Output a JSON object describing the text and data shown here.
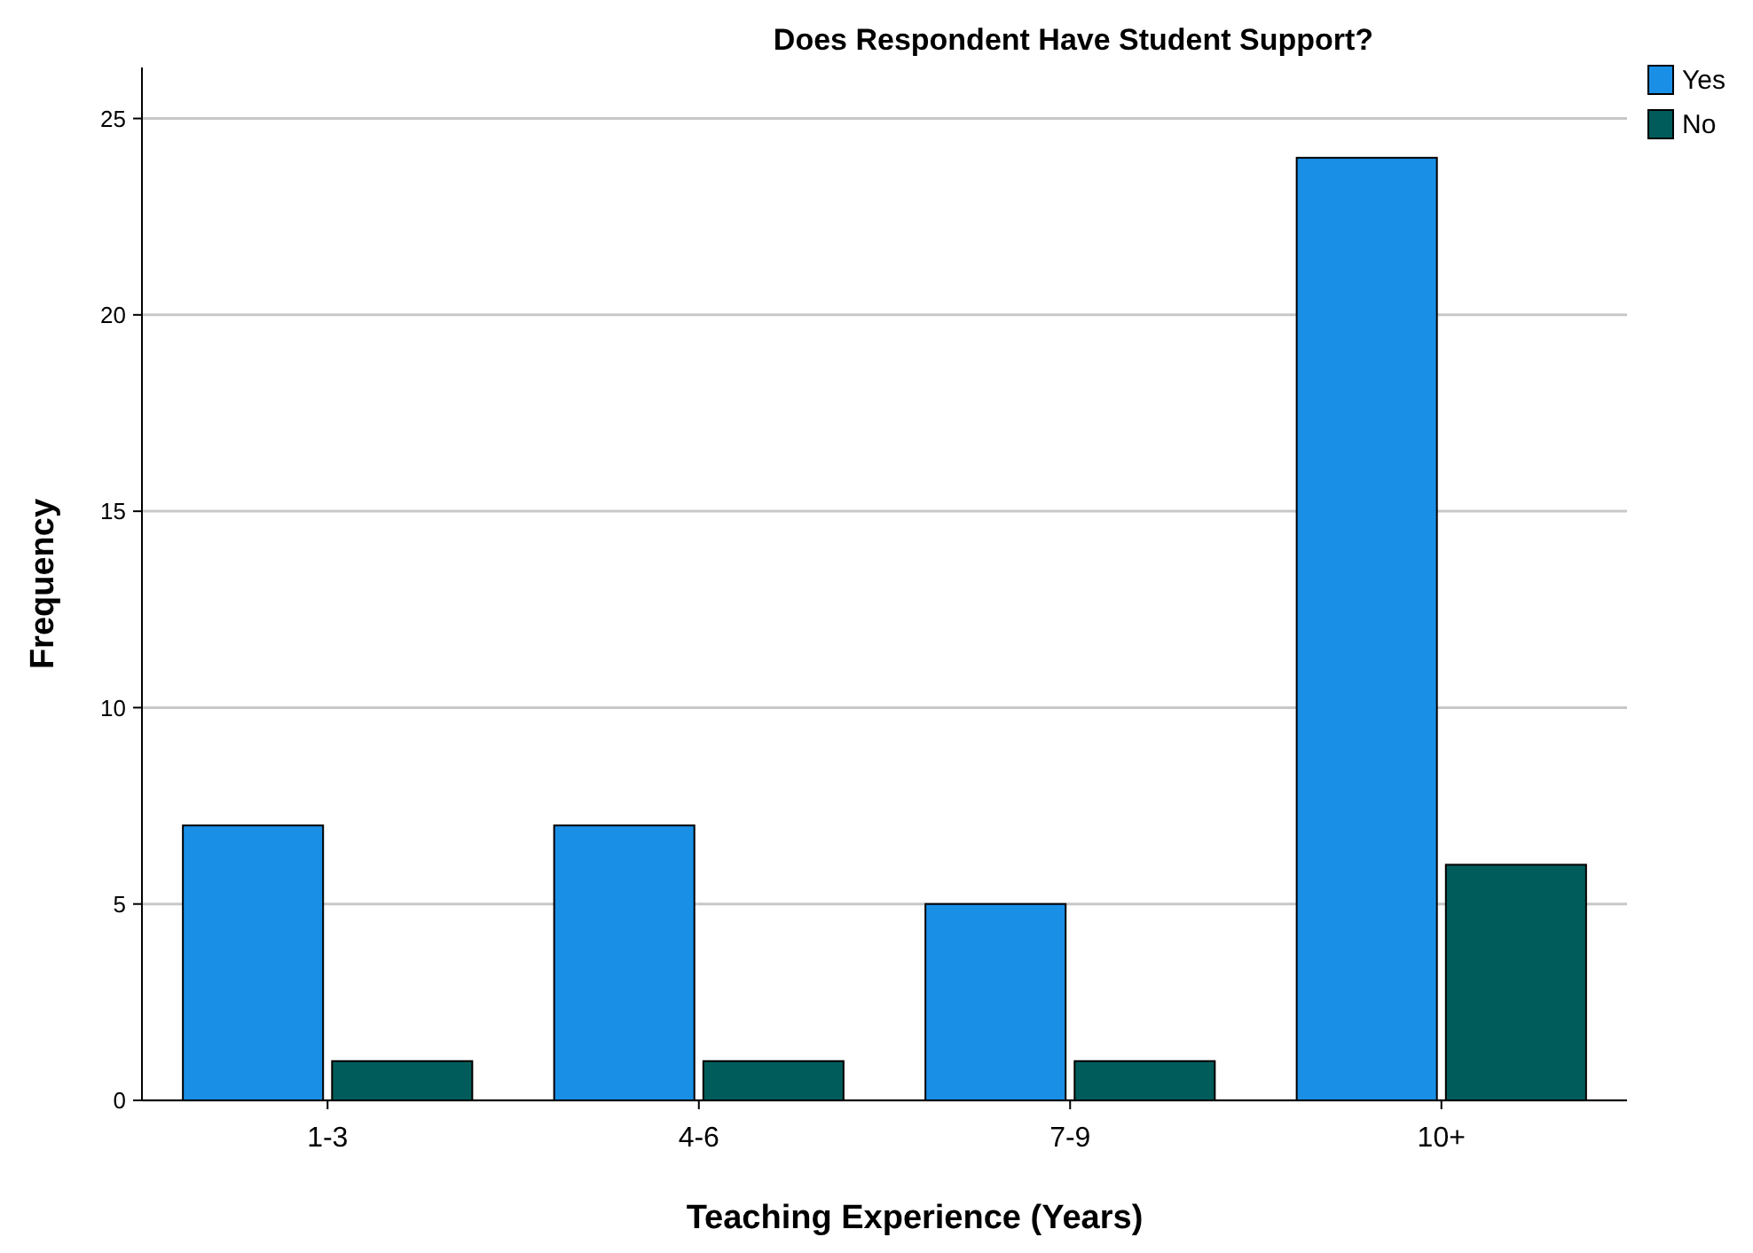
{
  "chart_data": {
    "type": "bar",
    "title": "Does Respondent Have Student Support?",
    "xlabel": "Teaching Experience (Years)",
    "ylabel": "Frequency",
    "categories": [
      "1-3",
      "4-6",
      "7-9",
      "10+"
    ],
    "series": [
      {
        "name": "Yes",
        "color": "#1a8fe6",
        "values": [
          7,
          7,
          5,
          24
        ]
      },
      {
        "name": "No",
        "color": "#005c5a",
        "values": [
          1,
          1,
          1,
          6
        ]
      }
    ],
    "ylim": [
      0,
      26.3
    ],
    "yticks": [
      0,
      5,
      10,
      15,
      20,
      25
    ],
    "grid": "y",
    "legend": "top right"
  }
}
